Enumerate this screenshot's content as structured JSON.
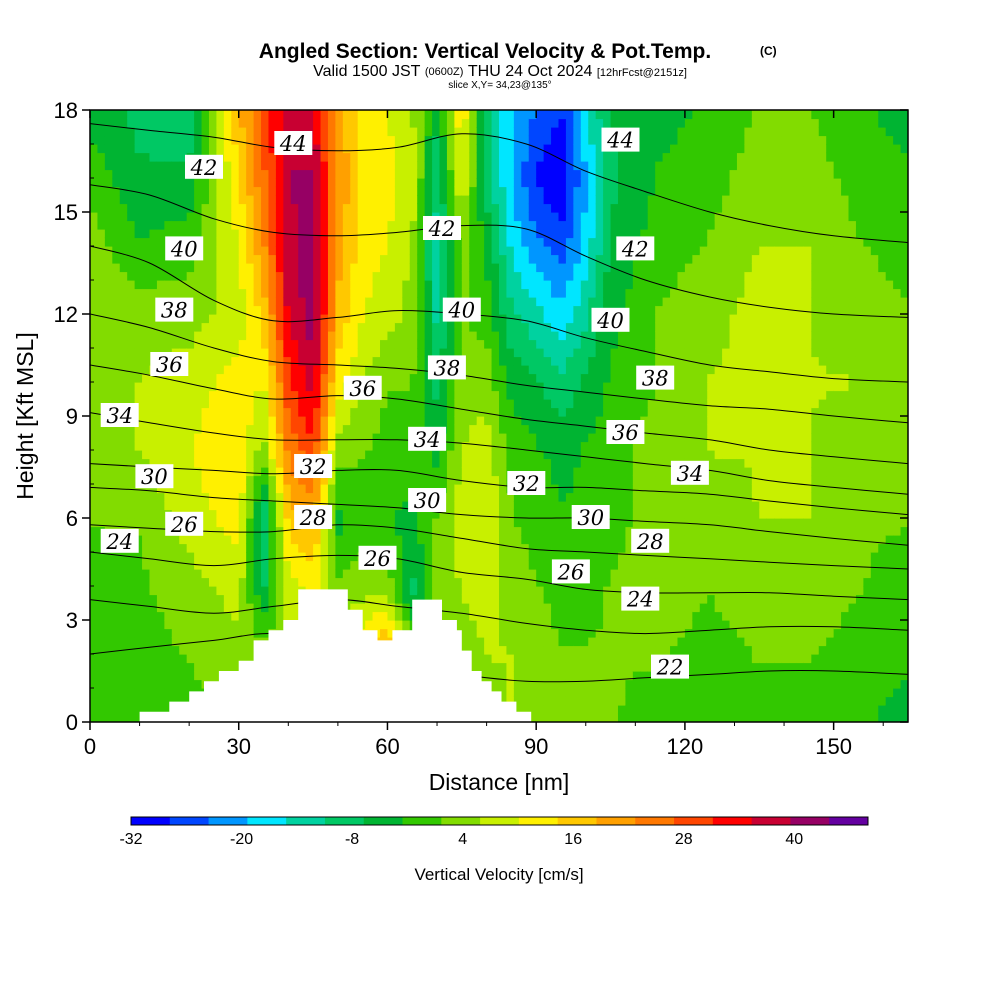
{
  "chart_data": {
    "type": "heatmap",
    "title": "Angled Section: Vertical Velocity & Pot.Temp.",
    "title_badge": "(C)",
    "subtitle": {
      "valid_prefix": "Valid 1500 JST",
      "utc": "(0600Z)",
      "valid_date": "THU 24 Oct 2024",
      "forecast": "[12hrFcst@2151z]"
    },
    "slice_info": "slice X,Y= 34,23@135°",
    "xlabel": "Distance [nm]",
    "ylabel": "Height [Kft MSL]",
    "xlim": [
      0,
      165
    ],
    "ylim": [
      0,
      18
    ],
    "x_ticks": [
      "0",
      "30",
      "60",
      "90",
      "120",
      "150"
    ],
    "y_ticks": [
      "0",
      "3",
      "6",
      "9",
      "12",
      "15",
      "18"
    ],
    "colorbar": {
      "label": "Vertical Velocity [cm/s]",
      "tick_labels": [
        "-32",
        "-20",
        "-8",
        "4",
        "16",
        "28",
        "40"
      ],
      "range": [
        -32,
        48
      ],
      "colors": [
        "#0000ff",
        "#0046ff",
        "#0096ff",
        "#00e6ff",
        "#00d2a0",
        "#00c864",
        "#00b432",
        "#32c800",
        "#82dc00",
        "#c8f000",
        "#fff000",
        "#ffc800",
        "#ffa000",
        "#ff7800",
        "#ff4600",
        "#ff0000",
        "#c80032",
        "#960064",
        "#6400a0"
      ]
    },
    "vertical_velocity_columns": [
      {
        "x": 0,
        "values": [
          -2,
          -1,
          0,
          2,
          4,
          5,
          6,
          4,
          0,
          -4
        ]
      },
      {
        "x": 10,
        "values": [
          -1,
          0,
          1,
          2,
          6,
          6,
          4,
          -2,
          -6,
          -8
        ]
      },
      {
        "x": 20,
        "values": [
          0,
          2,
          4,
          8,
          10,
          8,
          4,
          0,
          -6,
          -10
        ]
      },
      {
        "x": 30,
        "values": [
          2,
          4,
          8,
          12,
          14,
          12,
          8,
          10,
          14,
          18
        ]
      },
      {
        "x": 35,
        "values": [
          2,
          4,
          -8,
          -12,
          4,
          10,
          16,
          22,
          26,
          28
        ]
      },
      {
        "x": 40,
        "values": [
          4,
          6,
          8,
          16,
          24,
          30,
          36,
          38,
          40,
          38
        ]
      },
      {
        "x": 45,
        "values": [
          4,
          8,
          12,
          20,
          30,
          38,
          42,
          42,
          40,
          36
        ]
      },
      {
        "x": 50,
        "values": [
          6,
          10,
          2,
          -4,
          4,
          12,
          18,
          20,
          22,
          20
        ]
      },
      {
        "x": 55,
        "values": [
          10,
          14,
          4,
          0,
          2,
          6,
          10,
          12,
          14,
          12
        ]
      },
      {
        "x": 60,
        "values": [
          18,
          22,
          4,
          -2,
          0,
          2,
          8,
          10,
          12,
          10
        ]
      },
      {
        "x": 65,
        "values": [
          4,
          2,
          -8,
          -4,
          0,
          2,
          4,
          6,
          8,
          6
        ]
      },
      {
        "x": 70,
        "values": [
          0,
          2,
          4,
          2,
          -4,
          -8,
          -12,
          -14,
          -10,
          -6
        ]
      },
      {
        "x": 75,
        "values": [
          2,
          4,
          6,
          8,
          6,
          4,
          2,
          4,
          10,
          14
        ]
      },
      {
        "x": 80,
        "values": [
          4,
          6,
          8,
          10,
          8,
          4,
          0,
          -4,
          -8,
          -10
        ]
      },
      {
        "x": 85,
        "values": [
          6,
          6,
          4,
          2,
          0,
          -4,
          -10,
          -16,
          -20,
          -18
        ]
      },
      {
        "x": 90,
        "values": [
          4,
          4,
          2,
          0,
          -2,
          -6,
          -14,
          -22,
          -28,
          -24
        ]
      },
      {
        "x": 95,
        "values": [
          2,
          2,
          0,
          -2,
          -4,
          -10,
          -18,
          -26,
          -32,
          -28
        ]
      },
      {
        "x": 100,
        "values": [
          2,
          2,
          0,
          -2,
          -2,
          -6,
          -12,
          -18,
          -20,
          -16
        ]
      },
      {
        "x": 105,
        "values": [
          2,
          2,
          2,
          0,
          0,
          -2,
          -4,
          -6,
          -8,
          -6
        ]
      },
      {
        "x": 115,
        "values": [
          0,
          2,
          4,
          4,
          4,
          2,
          2,
          0,
          -2,
          -4
        ]
      },
      {
        "x": 125,
        "values": [
          -2,
          0,
          2,
          4,
          6,
          6,
          4,
          2,
          0,
          -2
        ]
      },
      {
        "x": 135,
        "values": [
          0,
          2,
          4,
          6,
          6,
          8,
          8,
          6,
          4,
          2
        ]
      },
      {
        "x": 145,
        "values": [
          0,
          2,
          4,
          6,
          6,
          6,
          6,
          6,
          4,
          2
        ]
      },
      {
        "x": 155,
        "values": [
          -2,
          0,
          2,
          2,
          4,
          6,
          4,
          2,
          0,
          -2
        ]
      },
      {
        "x": 165,
        "values": [
          -4,
          -2,
          0,
          2,
          4,
          4,
          2,
          0,
          -2,
          -4
        ]
      }
    ],
    "vertical_velocity_levels": [
      0,
      2,
      4,
      6,
      8,
      10,
      12,
      14,
      16,
      18
    ],
    "terrain": [
      {
        "x": 0,
        "y": 0
      },
      {
        "x": 10,
        "y": 0
      },
      {
        "x": 10,
        "y": 0.3
      },
      {
        "x": 16,
        "y": 0.3
      },
      {
        "x": 16,
        "y": 0.6
      },
      {
        "x": 20,
        "y": 0.6
      },
      {
        "x": 20,
        "y": 0.9
      },
      {
        "x": 23,
        "y": 0.9
      },
      {
        "x": 23,
        "y": 1.2
      },
      {
        "x": 26,
        "y": 1.2
      },
      {
        "x": 26,
        "y": 1.5
      },
      {
        "x": 30,
        "y": 1.5
      },
      {
        "x": 30,
        "y": 1.8
      },
      {
        "x": 33,
        "y": 1.8
      },
      {
        "x": 33,
        "y": 2.4
      },
      {
        "x": 36,
        "y": 2.4
      },
      {
        "x": 36,
        "y": 2.7
      },
      {
        "x": 39,
        "y": 2.7
      },
      {
        "x": 39,
        "y": 3.0
      },
      {
        "x": 42,
        "y": 3.0
      },
      {
        "x": 42,
        "y": 3.9
      },
      {
        "x": 52,
        "y": 3.9
      },
      {
        "x": 52,
        "y": 3.3
      },
      {
        "x": 55,
        "y": 3.3
      },
      {
        "x": 55,
        "y": 2.7
      },
      {
        "x": 58,
        "y": 2.7
      },
      {
        "x": 58,
        "y": 2.4
      },
      {
        "x": 61,
        "y": 2.4
      },
      {
        "x": 61,
        "y": 2.7
      },
      {
        "x": 65,
        "y": 2.7
      },
      {
        "x": 65,
        "y": 3.6
      },
      {
        "x": 71,
        "y": 3.6
      },
      {
        "x": 71,
        "y": 3.0
      },
      {
        "x": 74,
        "y": 3.0
      },
      {
        "x": 74,
        "y": 2.7
      },
      {
        "x": 75,
        "y": 2.7
      },
      {
        "x": 75,
        "y": 2.1
      },
      {
        "x": 77,
        "y": 2.1
      },
      {
        "x": 77,
        "y": 1.5
      },
      {
        "x": 79,
        "y": 1.5
      },
      {
        "x": 79,
        "y": 1.2
      },
      {
        "x": 81,
        "y": 1.2
      },
      {
        "x": 81,
        "y": 0.9
      },
      {
        "x": 83,
        "y": 0.9
      },
      {
        "x": 83,
        "y": 0.6
      },
      {
        "x": 86,
        "y": 0.6
      },
      {
        "x": 86,
        "y": 0.3
      },
      {
        "x": 89,
        "y": 0.3
      },
      {
        "x": 89,
        "y": 0
      },
      {
        "x": 165,
        "y": 0
      }
    ],
    "isentropes": [
      {
        "theta": 22,
        "heights": [
          2.0,
          2.2,
          2.4,
          2.6,
          2.2,
          1.8,
          1.4,
          1.2,
          1.2,
          1.3,
          1.4,
          1.5,
          1.5,
          1.4
        ]
      },
      {
        "theta": 24,
        "heights": [
          3.6,
          3.4,
          3.2,
          3.4,
          3.6,
          3.4,
          3.2,
          2.9,
          2.7,
          2.6,
          2.7,
          2.8,
          2.8,
          2.7
        ]
      },
      {
        "theta": 26,
        "heights": [
          5.0,
          4.8,
          4.6,
          4.8,
          4.9,
          4.8,
          4.4,
          4.2,
          3.9,
          3.8,
          3.8,
          3.8,
          3.7,
          3.6
        ]
      },
      {
        "theta": 28,
        "heights": [
          5.8,
          5.7,
          5.6,
          5.6,
          5.8,
          5.7,
          5.4,
          5.1,
          5.0,
          4.9,
          4.8,
          4.7,
          4.6,
          4.5
        ]
      },
      {
        "theta": 30,
        "heights": [
          6.9,
          6.8,
          6.6,
          6.5,
          6.4,
          6.3,
          6.1,
          6.0,
          6.0,
          5.9,
          5.8,
          5.6,
          5.4,
          5.2
        ]
      },
      {
        "theta": 32,
        "heights": [
          7.6,
          7.5,
          7.4,
          7.3,
          7.4,
          7.4,
          7.1,
          6.9,
          6.9,
          6.8,
          6.7,
          6.5,
          6.3,
          6.1
        ]
      },
      {
        "theta": 34,
        "heights": [
          9.1,
          8.8,
          8.5,
          8.3,
          8.3,
          8.3,
          8.2,
          8.0,
          7.8,
          7.6,
          7.4,
          7.1,
          6.9,
          6.7
        ]
      },
      {
        "theta": 36,
        "heights": [
          10.5,
          10.2,
          9.8,
          9.5,
          9.6,
          9.5,
          9.2,
          8.9,
          8.7,
          8.5,
          8.3,
          8.0,
          7.8,
          7.6
        ]
      },
      {
        "theta": 38,
        "heights": [
          12.0,
          11.6,
          11.0,
          10.6,
          10.5,
          10.4,
          10.2,
          9.9,
          9.7,
          9.5,
          9.3,
          9.2,
          9.0,
          8.8
        ]
      },
      {
        "theta": 40,
        "heights": [
          14.0,
          13.5,
          12.4,
          11.8,
          11.9,
          12.1,
          12.0,
          11.8,
          11.3,
          10.9,
          10.5,
          10.3,
          10.1,
          10.0
        ]
      },
      {
        "theta": 42,
        "heights": [
          15.8,
          15.5,
          14.8,
          14.4,
          14.3,
          14.4,
          14.6,
          14.5,
          13.7,
          13.0,
          12.5,
          12.2,
          12.0,
          11.9
        ]
      },
      {
        "theta": 44,
        "heights": [
          17.6,
          17.4,
          17.2,
          16.9,
          16.8,
          16.9,
          17.3,
          17.0,
          16.2,
          15.6,
          15.0,
          14.6,
          14.3,
          14.1
        ]
      }
    ],
    "isentrope_x": [
      0,
      12,
      25,
      37,
      50,
      62,
      75,
      88,
      100,
      112,
      125,
      137,
      150,
      165
    ],
    "contour_labels": [
      {
        "text": "44",
        "x": 41,
        "y": 17.0
      },
      {
        "text": "44",
        "x": 107,
        "y": 17.1
      },
      {
        "text": "42",
        "x": 23,
        "y": 16.3
      },
      {
        "text": "42",
        "x": 71,
        "y": 14.5
      },
      {
        "text": "42",
        "x": 110,
        "y": 13.9
      },
      {
        "text": "40",
        "x": 19,
        "y": 13.9
      },
      {
        "text": "40",
        "x": 75,
        "y": 12.1
      },
      {
        "text": "40",
        "x": 105,
        "y": 11.8
      },
      {
        "text": "38",
        "x": 17,
        "y": 12.1
      },
      {
        "text": "38",
        "x": 72,
        "y": 10.4
      },
      {
        "text": "38",
        "x": 114,
        "y": 10.1
      },
      {
        "text": "36",
        "x": 16,
        "y": 10.5
      },
      {
        "text": "36",
        "x": 55,
        "y": 9.8
      },
      {
        "text": "36",
        "x": 108,
        "y": 8.5
      },
      {
        "text": "34",
        "x": 6,
        "y": 9.0
      },
      {
        "text": "34",
        "x": 68,
        "y": 8.3
      },
      {
        "text": "34",
        "x": 121,
        "y": 7.3
      },
      {
        "text": "32",
        "x": 45,
        "y": 7.5
      },
      {
        "text": "32",
        "x": 88,
        "y": 7.0
      },
      {
        "text": "30",
        "x": 13,
        "y": 7.2
      },
      {
        "text": "30",
        "x": 68,
        "y": 6.5
      },
      {
        "text": "30",
        "x": 101,
        "y": 6.0
      },
      {
        "text": "28",
        "x": 45,
        "y": 6.0
      },
      {
        "text": "28",
        "x": 113,
        "y": 5.3
      },
      {
        "text": "26",
        "x": 19,
        "y": 5.8
      },
      {
        "text": "26",
        "x": 58,
        "y": 4.8
      },
      {
        "text": "26",
        "x": 97,
        "y": 4.4
      },
      {
        "text": "24",
        "x": 6,
        "y": 5.3
      },
      {
        "text": "24",
        "x": 111,
        "y": 3.6
      },
      {
        "text": "22",
        "x": 117,
        "y": 1.6
      }
    ]
  }
}
